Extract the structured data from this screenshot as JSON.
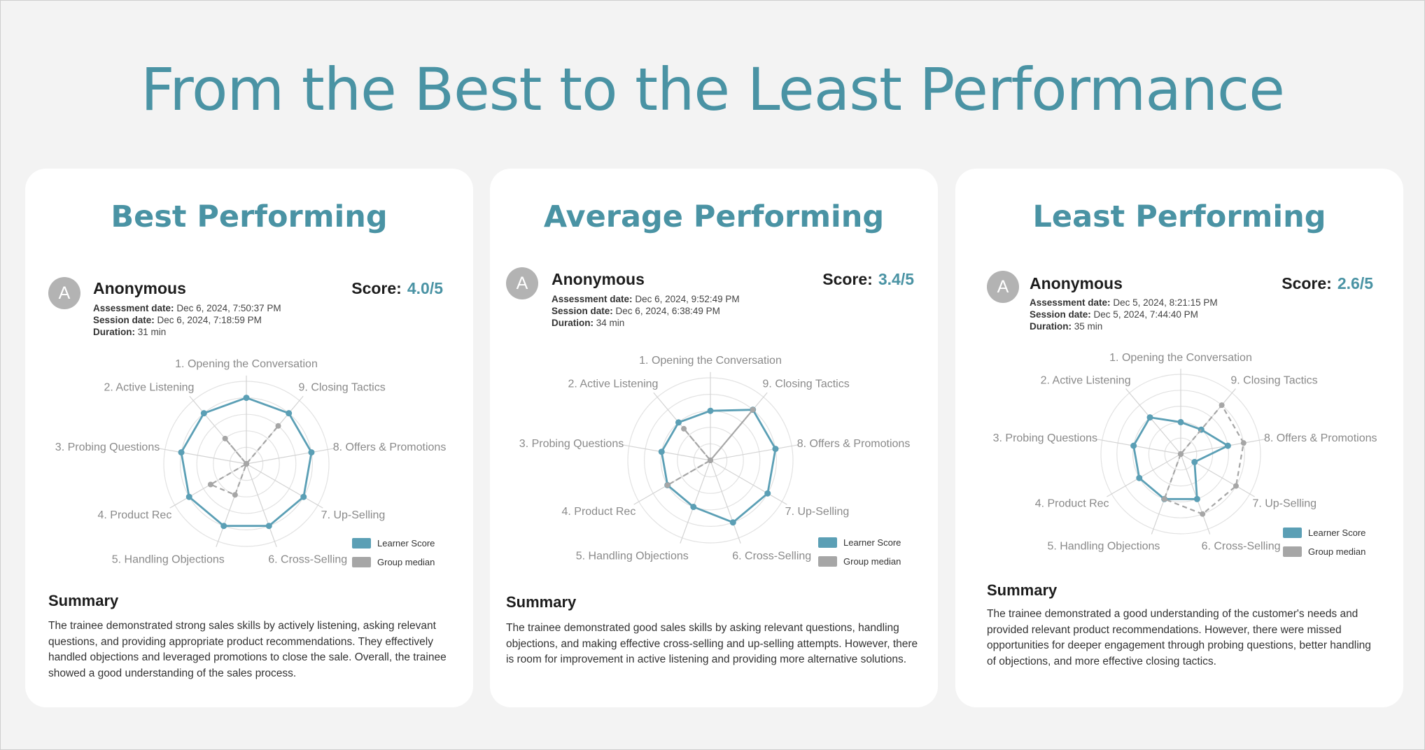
{
  "page": {
    "title": "From the Best to the Least Performance"
  },
  "colors": {
    "accent": "#4a93a4",
    "learner": "#5b9fb5",
    "median": "#a6a6a6",
    "grid": "#e2e2e2",
    "label": "#8a8a8a"
  },
  "legend": {
    "learner_label": "Learner Score",
    "median_label": "Group median"
  },
  "summary_heading": "Summary",
  "score_label": "Score:",
  "labels": {
    "assessment_date": "Assessment date:",
    "session_date": "Session date:",
    "duration": "Duration:"
  },
  "cards": [
    {
      "title": "Best Performing",
      "avatar": "A",
      "name": "Anonymous",
      "score": "4.0/5",
      "assessment_date": "Dec 6, 2024, 7:50:37 PM",
      "session_date": "Dec 6, 2024, 7:18:59 PM",
      "duration": "31 min",
      "summary": "The trainee demonstrated strong sales skills by actively listening, asking relevant questions, and providing appropriate product recommendations. They effectively handled objections and leveraged promotions to close the sale. Overall, the trainee showed a good understanding of the sales process."
    },
    {
      "title": "Average Performing",
      "avatar": "A",
      "name": "Anonymous",
      "score": "3.4/5",
      "assessment_date": "Dec 6, 2024, 9:52:49 PM",
      "session_date": "Dec 6, 2024, 6:38:49 PM",
      "duration": "34 min",
      "summary": "The trainee demonstrated good sales skills by asking relevant questions, handling objections, and making effective cross-selling and up-selling attempts. However, there is room for improvement in active listening and providing more alternative solutions."
    },
    {
      "title": "Least Performing",
      "avatar": "A",
      "name": "Anonymous",
      "score": "2.6/5",
      "assessment_date": "Dec 5, 2024, 8:21:15 PM",
      "session_date": "Dec 5, 2024, 7:44:40 PM",
      "duration": "35 min",
      "summary": "The trainee demonstrated a good understanding of the customer's needs and provided relevant product recommendations. However, there were missed opportunities for deeper engagement through probing questions, better handling of objections, and more effective closing tactics."
    }
  ],
  "chart_data": [
    {
      "type": "radar",
      "axes": [
        "1. Opening the Conversation",
        "2. Active Listening",
        "3. Probing Questions",
        "4. Product Rec",
        "5. Handling Objections",
        "6. Cross-Selling",
        "7. Up-Selling",
        "8. Offers & Promotions",
        "9. Closing Tactics"
      ],
      "max": 5,
      "series": [
        {
          "name": "Learner Score",
          "values": [
            4,
            4,
            4,
            4,
            4,
            4,
            4,
            4,
            4
          ]
        },
        {
          "name": "Group median",
          "values": [
            0,
            2,
            0,
            2.5,
            2,
            0,
            0,
            0,
            3
          ]
        }
      ]
    },
    {
      "type": "radar",
      "axes": [
        "1. Opening the Conversation",
        "2. Active Listening",
        "3. Probing Questions",
        "4. Product Rec",
        "5. Handling Objections",
        "6. Cross-Selling",
        "7. Up-Selling",
        "8. Offers & Promotions",
        "9. Closing Tactics"
      ],
      "max": 5,
      "series": [
        {
          "name": "Learner Score",
          "values": [
            3,
            3,
            3,
            3,
            3,
            4,
            4,
            4,
            4
          ]
        },
        {
          "name": "Group median",
          "values": [
            0,
            2.5,
            0,
            3,
            0,
            0,
            0,
            0,
            4
          ]
        }
      ]
    },
    {
      "type": "radar",
      "axes": [
        "1. Opening the Conversation",
        "2. Active Listening",
        "3. Probing Questions",
        "4. Product Rec",
        "5. Handling Objections",
        "6. Cross-Selling",
        "7. Up-Selling",
        "8. Offers & Promotions",
        "9. Closing Tactics"
      ],
      "max": 5,
      "series": [
        {
          "name": "Learner Score",
          "values": [
            2,
            3,
            3,
            3,
            3,
            3,
            1,
            3,
            2
          ]
        },
        {
          "name": "Group median",
          "values": [
            0,
            0,
            0,
            0,
            3,
            4,
            4,
            4,
            4
          ]
        }
      ]
    }
  ]
}
